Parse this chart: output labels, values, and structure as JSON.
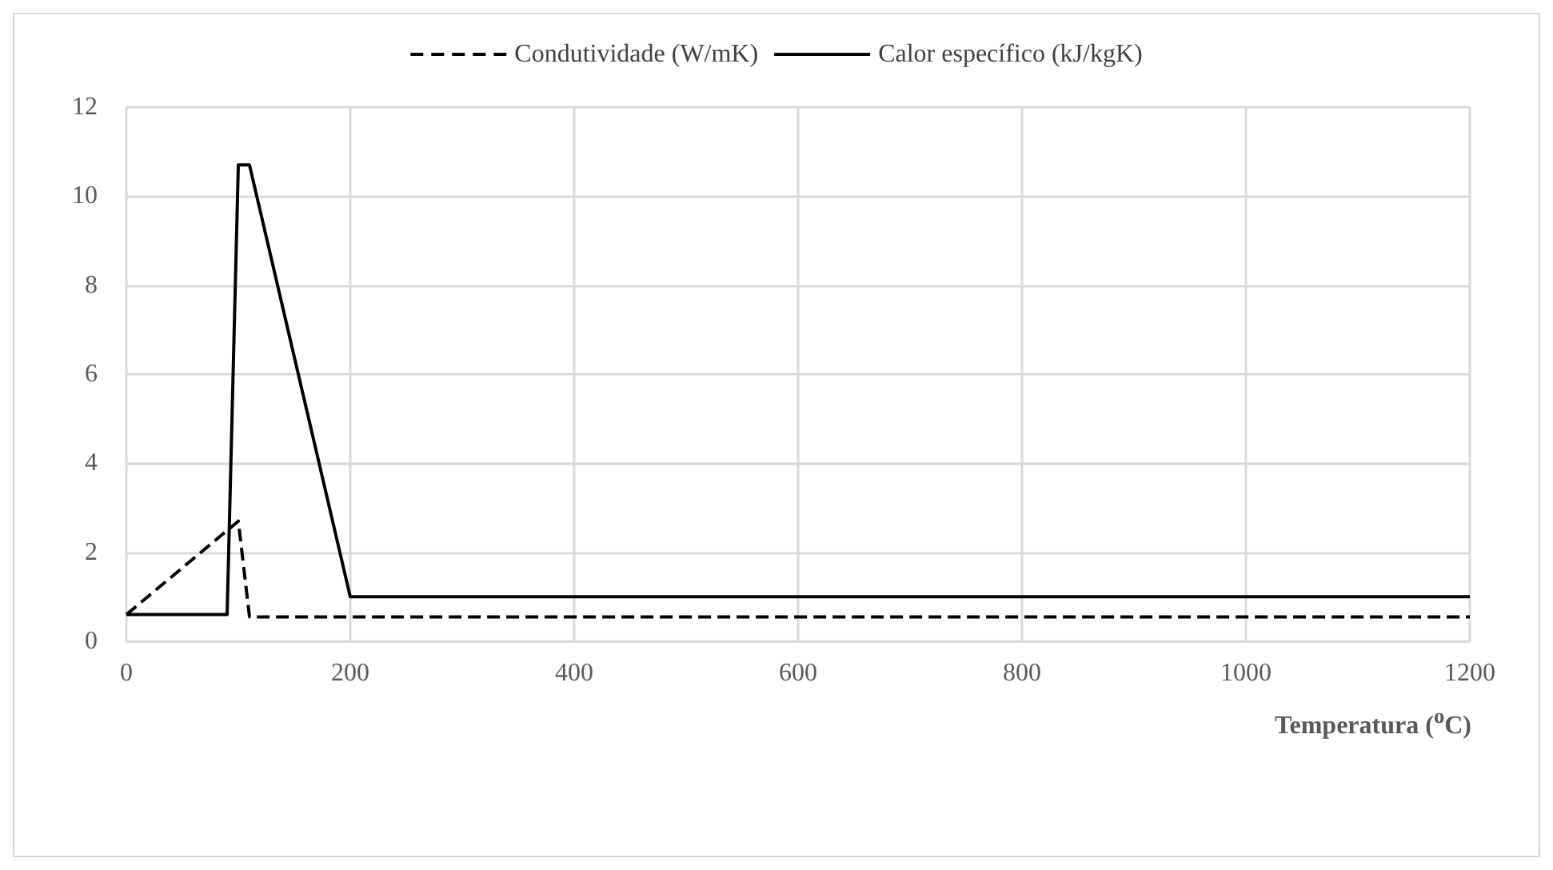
{
  "chart_data": {
    "type": "line",
    "xlabel": "Temperatura ($^{o}$C)",
    "series": [
      {
        "name": "Condutividade (W/mK)",
        "color": "#000000",
        "line_style": "dashed",
        "x": [
          0,
          100,
          110,
          1200
        ],
        "values": [
          0.6,
          2.7,
          0.55,
          0.55
        ]
      },
      {
        "name": "Calor específico (kJ/kgK)",
        "color": "#000000",
        "line_style": "solid",
        "x": [
          0,
          90,
          100,
          110,
          200,
          1200
        ],
        "values": [
          0.6,
          0.6,
          10.7,
          10.7,
          1.0,
          1.0
        ]
      }
    ],
    "xlim": [
      0,
      1200
    ],
    "xticks": [
      0,
      200,
      400,
      600,
      800,
      1000,
      1200
    ],
    "ylim": [
      0,
      12
    ],
    "yticks": [
      0,
      2,
      4,
      6,
      8,
      10,
      12
    ],
    "grid": true,
    "legend": "top",
    "marker": "none"
  }
}
